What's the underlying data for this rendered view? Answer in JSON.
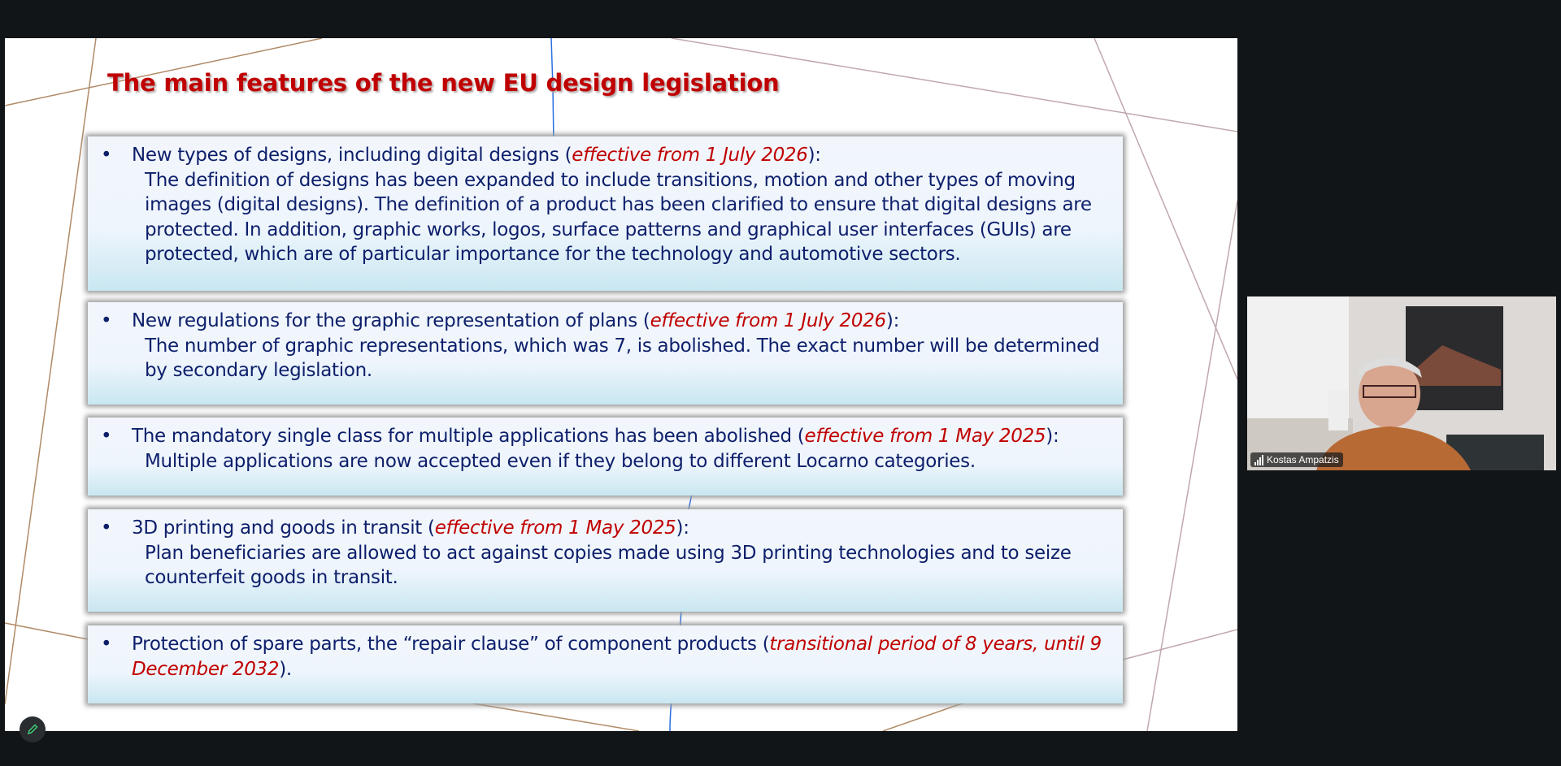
{
  "slide": {
    "title": "The main features of the new EU design legislation",
    "items": [
      {
        "head": "New types of designs, including digital designs (",
        "effective": "effective from 1 July 2026",
        "tail": "):",
        "lines": [
          "The definition of designs has been expanded to include transitions, motion and other types of moving",
          "images (digital designs). The definition of a product has been clarified to ensure that digital designs are",
          "protected. In addition, graphic works, logos, surface patterns and graphical user interfaces (GUIs) are",
          "protected, which are of particular importance for the technology and automotive sectors."
        ]
      },
      {
        "head": "New regulations for the graphic representation of plans (",
        "effective": "effective from 1 July 2026",
        "tail": "):",
        "lines": [
          "The number of graphic representations, which was 7, is abolished. The exact number will be determined",
          "by secondary legislation."
        ]
      },
      {
        "head": "The mandatory single class for multiple applications has been abolished (",
        "effective": "effective from 1 May 2025",
        "tail": "):",
        "lines": [
          "Multiple applications are now accepted even if they belong to different Locarno categories."
        ]
      },
      {
        "head": "3D printing and goods in transit (",
        "effective": "effective from 1 May 2025",
        "tail": "):",
        "lines": [
          "Plan beneficiaries are allowed to act against copies made using 3D printing technologies and to seize",
          "counterfeit goods in transit."
        ]
      },
      {
        "head": "Protection of spare parts, the “repair clause” of component products (",
        "effective": "transitional period of 8 years, until 9",
        "effective2": "December 2032",
        "tail": ")."
      }
    ],
    "bullet": "•"
  },
  "video": {
    "participant_name": "Kostas Ampatzis"
  },
  "icons": {
    "annotate": "pencil-icon",
    "signal": "signal-bars-icon"
  },
  "colors": {
    "title": "#c00000",
    "body_text": "#0d1f6b",
    "emphasis": "#c00000",
    "background": "#121517"
  }
}
